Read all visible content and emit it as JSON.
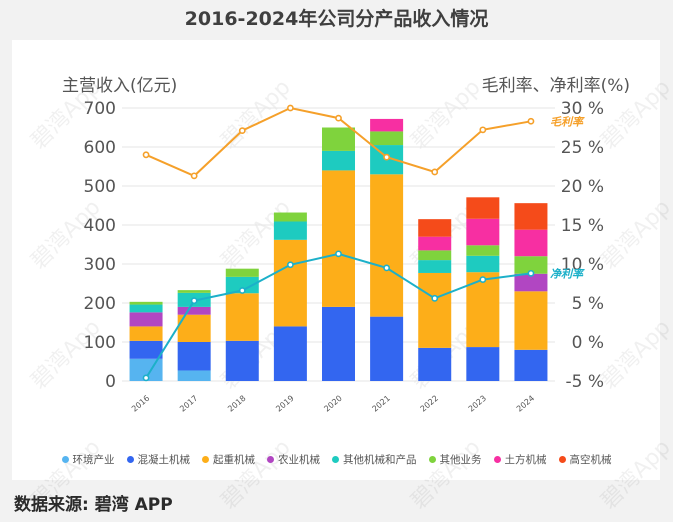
{
  "title": "2016-2024年公司分产品收入情况",
  "source": "数据来源: 碧湾 APP",
  "watermark": "碧湾App",
  "colors": {
    "grid": "#e6e6e6",
    "axis_text": "#555555",
    "line_label_gross": "#f5a623",
    "line_label_net": "#1cb0c9"
  },
  "chart_data": {
    "type": "bar",
    "stacked": true,
    "categories": [
      "2016",
      "2017",
      "2018",
      "2019",
      "2020",
      "2021",
      "2022",
      "2023",
      "2024"
    ],
    "ylabel_left": "主营收入(亿元)",
    "ylabel_right": "毛利率、净利率(%)",
    "ylim_left": [
      0,
      700
    ],
    "yticks_left": [
      "0",
      "100",
      "200",
      "300",
      "400",
      "500",
      "600",
      "700"
    ],
    "ylim_right": [
      -5,
      30
    ],
    "yticks_right": [
      "-5 %",
      "0 %",
      "5 %",
      "10 %",
      "15 %",
      "20 %",
      "25 %",
      "30 %"
    ],
    "series": [
      {
        "name": "环境产业",
        "color": "#56b4f0",
        "values": [
          57,
          27,
          0,
          0,
          0,
          0,
          0,
          0,
          0
        ]
      },
      {
        "name": "混凝土机械",
        "color": "#3366f0",
        "values": [
          46,
          73,
          103,
          140,
          190,
          165,
          85,
          87,
          80
        ]
      },
      {
        "name": "起重机械",
        "color": "#fdae19",
        "values": [
          37,
          70,
          122,
          222,
          350,
          365,
          192,
          192,
          150
        ]
      },
      {
        "name": "农业机械",
        "color": "#b146c2",
        "values": [
          36,
          20,
          0,
          0,
          0,
          0,
          0,
          0,
          45
        ]
      },
      {
        "name": "其他机械和产品",
        "color": "#1ecbc0",
        "values": [
          20,
          36,
          42,
          47,
          50,
          75,
          33,
          42,
          0
        ]
      },
      {
        "name": "其他业务",
        "color": "#7fd33d",
        "values": [
          7,
          7,
          21,
          23,
          60,
          35,
          25,
          27,
          45
        ]
      },
      {
        "name": "土方机械",
        "color": "#f72fa2",
        "values": [
          0,
          0,
          0,
          0,
          0,
          32,
          35,
          68,
          68
        ]
      },
      {
        "name": "高空机械",
        "color": "#f54b1a",
        "values": [
          0,
          0,
          0,
          0,
          0,
          0,
          45,
          55,
          68
        ]
      }
    ],
    "lines": [
      {
        "name": "毛利率",
        "label": "毛利率",
        "color": "#f5a02a",
        "axis": "right",
        "values": [
          24.0,
          21.3,
          27.1,
          30.0,
          28.7,
          23.7,
          21.8,
          27.2,
          28.3
        ]
      },
      {
        "name": "净利率",
        "label": "净利率",
        "color": "#1cb0c9",
        "axis": "right",
        "values": [
          -4.6,
          5.3,
          6.6,
          9.9,
          11.3,
          9.5,
          5.6,
          8.0,
          8.8
        ]
      }
    ]
  }
}
